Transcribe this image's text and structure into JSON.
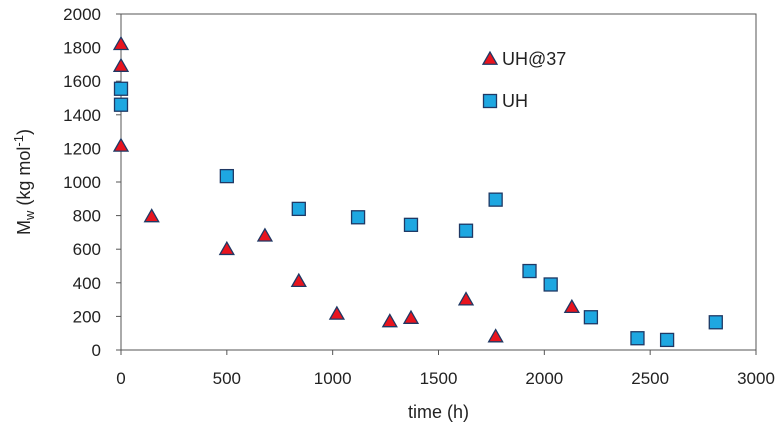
{
  "chart_data": {
    "type": "scatter",
    "xlabel": "time (h)",
    "ylabel": {
      "main": "M",
      "sub": "w",
      "rest": " (kg mol",
      "sup": "-1",
      "close": ")"
    },
    "xlim": [
      0,
      3000
    ],
    "ylim": [
      0,
      2000
    ],
    "xticks": [
      0,
      500,
      1000,
      1500,
      2000,
      2500,
      3000
    ],
    "yticks": [
      0,
      200,
      400,
      600,
      800,
      1000,
      1200,
      1400,
      1600,
      1800,
      2000
    ],
    "grid": false,
    "legend_position": "top-right",
    "series": [
      {
        "name": "UH@37",
        "marker": "triangle",
        "color": "#e8141e",
        "points": [
          [
            0,
            1820
          ],
          [
            0,
            1690
          ],
          [
            0,
            1215
          ],
          [
            145,
            795
          ],
          [
            500,
            600
          ],
          [
            680,
            680
          ],
          [
            840,
            410
          ],
          [
            1020,
            215
          ],
          [
            1270,
            170
          ],
          [
            1370,
            190
          ],
          [
            1630,
            300
          ],
          [
            1770,
            80
          ],
          [
            2130,
            255
          ]
        ]
      },
      {
        "name": "UH",
        "marker": "square",
        "color": "#1ea7e1",
        "points": [
          [
            0,
            1555
          ],
          [
            0,
            1460
          ],
          [
            500,
            1035
          ],
          [
            840,
            840
          ],
          [
            1120,
            790
          ],
          [
            1370,
            745
          ],
          [
            1630,
            710
          ],
          [
            1770,
            895
          ],
          [
            1930,
            470
          ],
          [
            2030,
            390
          ],
          [
            2220,
            195
          ],
          [
            2440,
            70
          ],
          [
            2580,
            60
          ],
          [
            2810,
            165
          ]
        ]
      }
    ]
  }
}
